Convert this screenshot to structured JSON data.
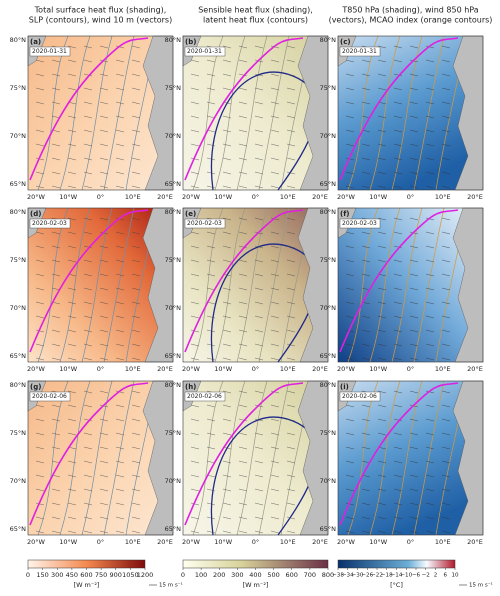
{
  "columns": [
    {
      "title": [
        "Total surface heat flux (shading),",
        "SLP (contours), wind 10 m (vectors)"
      ],
      "colorbar": {
        "ticks": [
          "0",
          "150",
          "300",
          "450",
          "600",
          "750",
          "900",
          "1050",
          "1200"
        ],
        "unit": "[W m⁻²]"
      },
      "vector_legend": "15 m s⁻¹"
    },
    {
      "title": [
        "Sensible heat flux (shading),",
        "latent heat flux (contours)"
      ],
      "colorbar": {
        "ticks": [
          "0",
          "100",
          "200",
          "300",
          "400",
          "500",
          "600",
          "700",
          "800"
        ],
        "unit": "[W m⁻²]"
      }
    },
    {
      "title": [
        "T850 hPa (shading), wind 850 hPa",
        "(vectors), MCAO index (orange contours)"
      ],
      "colorbar": {
        "ticks": [
          "−38",
          "−34",
          "−30",
          "−26",
          "−22",
          "−18",
          "−14",
          "−10",
          "−6",
          "−2",
          "2",
          "6",
          "10"
        ],
        "unit": "[°C]"
      },
      "vector_legend": "15 m s⁻¹"
    }
  ],
  "rows": [
    {
      "date": "2020-01-31",
      "labels": [
        "(a)",
        "(b)",
        "(c)"
      ]
    },
    {
      "date": "2020-02-03",
      "labels": [
        "(d)",
        "(e)",
        "(f)"
      ]
    },
    {
      "date": "2020-02-06",
      "labels": [
        "(g)",
        "(h)",
        "(i)"
      ]
    }
  ],
  "lat_ticks": [
    "80°N",
    "75°N",
    "70°N",
    "65°N"
  ],
  "lon_ticks": [
    "20°W",
    "10°W",
    "0°",
    "10°E",
    "20°E"
  ]
}
